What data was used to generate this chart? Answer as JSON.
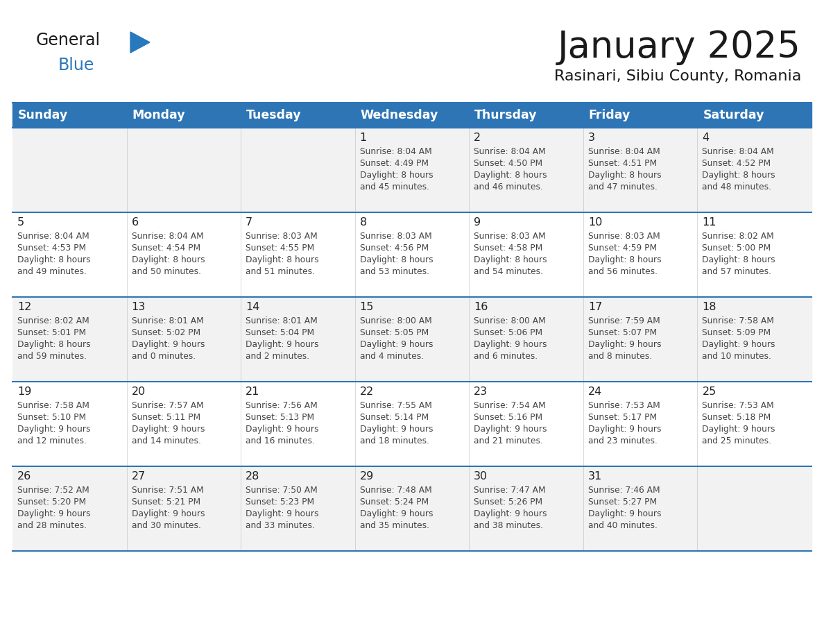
{
  "title": "January 2025",
  "subtitle": "Rasinari, Sibiu County, Romania",
  "header_color": "#2E75B6",
  "header_text_color": "#FFFFFF",
  "day_names": [
    "Sunday",
    "Monday",
    "Tuesday",
    "Wednesday",
    "Thursday",
    "Friday",
    "Saturday"
  ],
  "separator_color": "#2E75B6",
  "row_color_odd": "#F2F2F2",
  "row_color_even": "#FFFFFF",
  "cell_line_color": "#AAAAAA",
  "day_number_color": "#222222",
  "day_text_color": "#444444",
  "background_color": "#FFFFFF",
  "logo_general_color": "#1a1a1a",
  "logo_blue_color": "#2878BE",
  "logo_triangle_color": "#2878BE",
  "title_color": "#1a1a1a",
  "subtitle_color": "#1a1a1a",
  "calendar_data": [
    [
      {
        "day": "",
        "info": ""
      },
      {
        "day": "",
        "info": ""
      },
      {
        "day": "",
        "info": ""
      },
      {
        "day": "1",
        "info": "Sunrise: 8:04 AM\nSunset: 4:49 PM\nDaylight: 8 hours\nand 45 minutes."
      },
      {
        "day": "2",
        "info": "Sunrise: 8:04 AM\nSunset: 4:50 PM\nDaylight: 8 hours\nand 46 minutes."
      },
      {
        "day": "3",
        "info": "Sunrise: 8:04 AM\nSunset: 4:51 PM\nDaylight: 8 hours\nand 47 minutes."
      },
      {
        "day": "4",
        "info": "Sunrise: 8:04 AM\nSunset: 4:52 PM\nDaylight: 8 hours\nand 48 minutes."
      }
    ],
    [
      {
        "day": "5",
        "info": "Sunrise: 8:04 AM\nSunset: 4:53 PM\nDaylight: 8 hours\nand 49 minutes."
      },
      {
        "day": "6",
        "info": "Sunrise: 8:04 AM\nSunset: 4:54 PM\nDaylight: 8 hours\nand 50 minutes."
      },
      {
        "day": "7",
        "info": "Sunrise: 8:03 AM\nSunset: 4:55 PM\nDaylight: 8 hours\nand 51 minutes."
      },
      {
        "day": "8",
        "info": "Sunrise: 8:03 AM\nSunset: 4:56 PM\nDaylight: 8 hours\nand 53 minutes."
      },
      {
        "day": "9",
        "info": "Sunrise: 8:03 AM\nSunset: 4:58 PM\nDaylight: 8 hours\nand 54 minutes."
      },
      {
        "day": "10",
        "info": "Sunrise: 8:03 AM\nSunset: 4:59 PM\nDaylight: 8 hours\nand 56 minutes."
      },
      {
        "day": "11",
        "info": "Sunrise: 8:02 AM\nSunset: 5:00 PM\nDaylight: 8 hours\nand 57 minutes."
      }
    ],
    [
      {
        "day": "12",
        "info": "Sunrise: 8:02 AM\nSunset: 5:01 PM\nDaylight: 8 hours\nand 59 minutes."
      },
      {
        "day": "13",
        "info": "Sunrise: 8:01 AM\nSunset: 5:02 PM\nDaylight: 9 hours\nand 0 minutes."
      },
      {
        "day": "14",
        "info": "Sunrise: 8:01 AM\nSunset: 5:04 PM\nDaylight: 9 hours\nand 2 minutes."
      },
      {
        "day": "15",
        "info": "Sunrise: 8:00 AM\nSunset: 5:05 PM\nDaylight: 9 hours\nand 4 minutes."
      },
      {
        "day": "16",
        "info": "Sunrise: 8:00 AM\nSunset: 5:06 PM\nDaylight: 9 hours\nand 6 minutes."
      },
      {
        "day": "17",
        "info": "Sunrise: 7:59 AM\nSunset: 5:07 PM\nDaylight: 9 hours\nand 8 minutes."
      },
      {
        "day": "18",
        "info": "Sunrise: 7:58 AM\nSunset: 5:09 PM\nDaylight: 9 hours\nand 10 minutes."
      }
    ],
    [
      {
        "day": "19",
        "info": "Sunrise: 7:58 AM\nSunset: 5:10 PM\nDaylight: 9 hours\nand 12 minutes."
      },
      {
        "day": "20",
        "info": "Sunrise: 7:57 AM\nSunset: 5:11 PM\nDaylight: 9 hours\nand 14 minutes."
      },
      {
        "day": "21",
        "info": "Sunrise: 7:56 AM\nSunset: 5:13 PM\nDaylight: 9 hours\nand 16 minutes."
      },
      {
        "day": "22",
        "info": "Sunrise: 7:55 AM\nSunset: 5:14 PM\nDaylight: 9 hours\nand 18 minutes."
      },
      {
        "day": "23",
        "info": "Sunrise: 7:54 AM\nSunset: 5:16 PM\nDaylight: 9 hours\nand 21 minutes."
      },
      {
        "day": "24",
        "info": "Sunrise: 7:53 AM\nSunset: 5:17 PM\nDaylight: 9 hours\nand 23 minutes."
      },
      {
        "day": "25",
        "info": "Sunrise: 7:53 AM\nSunset: 5:18 PM\nDaylight: 9 hours\nand 25 minutes."
      }
    ],
    [
      {
        "day": "26",
        "info": "Sunrise: 7:52 AM\nSunset: 5:20 PM\nDaylight: 9 hours\nand 28 minutes."
      },
      {
        "day": "27",
        "info": "Sunrise: 7:51 AM\nSunset: 5:21 PM\nDaylight: 9 hours\nand 30 minutes."
      },
      {
        "day": "28",
        "info": "Sunrise: 7:50 AM\nSunset: 5:23 PM\nDaylight: 9 hours\nand 33 minutes."
      },
      {
        "day": "29",
        "info": "Sunrise: 7:48 AM\nSunset: 5:24 PM\nDaylight: 9 hours\nand 35 minutes."
      },
      {
        "day": "30",
        "info": "Sunrise: 7:47 AM\nSunset: 5:26 PM\nDaylight: 9 hours\nand 38 minutes."
      },
      {
        "day": "31",
        "info": "Sunrise: 7:46 AM\nSunset: 5:27 PM\nDaylight: 9 hours\nand 40 minutes."
      },
      {
        "day": "",
        "info": ""
      }
    ]
  ]
}
